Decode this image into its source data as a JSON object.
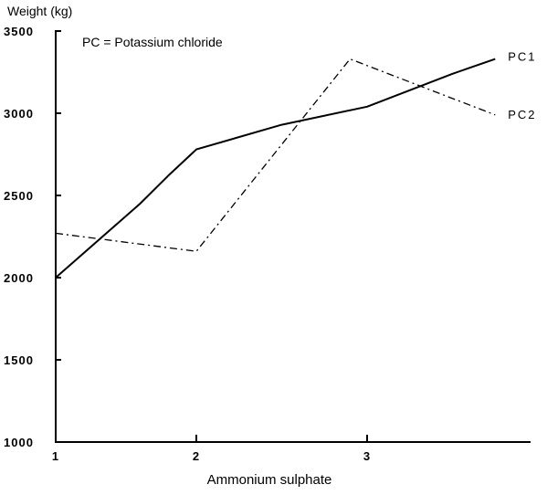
{
  "chart_data": {
    "type": "line",
    "ylabel": "Weight (kg)",
    "xlabel": "Ammonium sulphate",
    "annotation": "PC = Potassium chloride",
    "x_ticks": [
      "1",
      "2",
      "3"
    ],
    "y_ticks": [
      "1000",
      "1500",
      "2000",
      "2500",
      "3000",
      "3500"
    ],
    "ylim": [
      1000,
      3500
    ],
    "xlim": [
      1,
      3.95
    ],
    "grid": false,
    "legend": "inline labels at line ends",
    "series": [
      {
        "name": "PC1",
        "style": "solid",
        "x": [
          1,
          1.2,
          1.4,
          1.6,
          1.8,
          2,
          2.5,
          3,
          3.5,
          3.75
        ],
        "y": [
          2000,
          2150,
          2300,
          2450,
          2620,
          2780,
          2930,
          3040,
          3240,
          3330
        ]
      },
      {
        "name": "PC2",
        "style": "dash-dot",
        "x": [
          1,
          2,
          2.9,
          3.75
        ],
        "y": [
          2270,
          2160,
          3330,
          2990
        ]
      }
    ]
  }
}
